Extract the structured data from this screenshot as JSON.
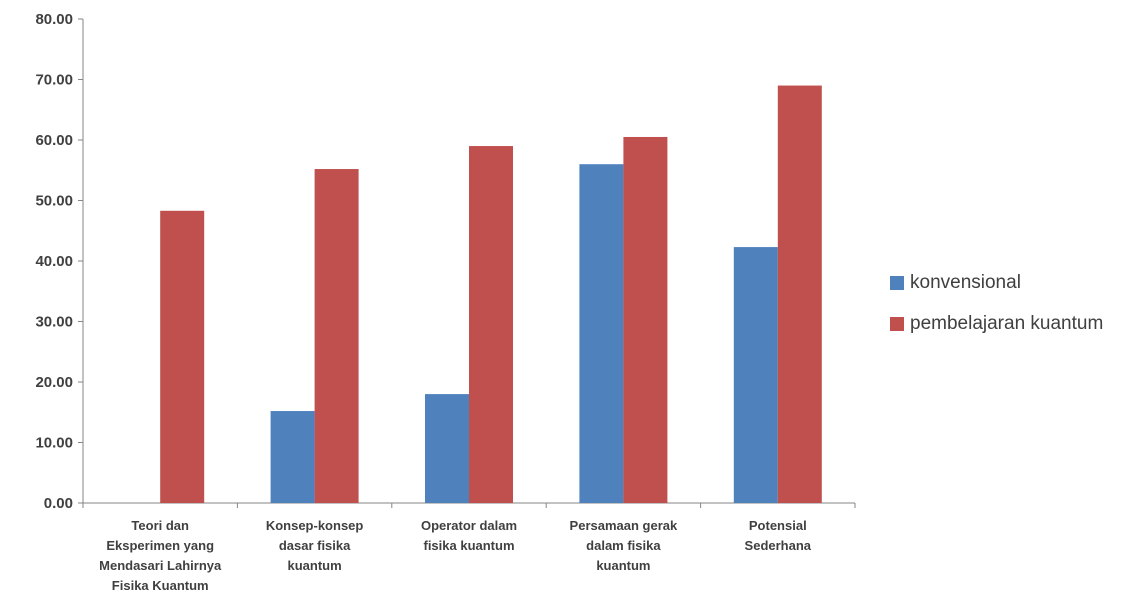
{
  "chart_data": {
    "type": "bar",
    "categories": [
      [
        "Teori dan",
        "Eksperimen yang",
        "Mendasari Lahirnya",
        "Fisika Kuantum"
      ],
      [
        "Konsep-konsep",
        "dasar fisika",
        "kuantum"
      ],
      [
        "Operator dalam",
        "fisika kuantum"
      ],
      [
        "Persamaan gerak",
        "dalam fisika",
        "kuantum"
      ],
      [
        "Potensial",
        "Sederhana"
      ]
    ],
    "series": [
      {
        "name": "konvensional",
        "color": "#4F81BD",
        "values": [
          0,
          15.2,
          18.0,
          56.0,
          42.3
        ]
      },
      {
        "name": "pembelajaran kuantum",
        "color": "#C0504D",
        "values": [
          48.3,
          55.2,
          59.0,
          60.5,
          69.0
        ]
      }
    ],
    "ylim": [
      0,
      80
    ],
    "yticks": [
      "0.00",
      "10.00",
      "20.00",
      "30.00",
      "40.00",
      "50.00",
      "60.00",
      "70.00",
      "80.00"
    ],
    "grid": false,
    "legend_position": "right"
  }
}
